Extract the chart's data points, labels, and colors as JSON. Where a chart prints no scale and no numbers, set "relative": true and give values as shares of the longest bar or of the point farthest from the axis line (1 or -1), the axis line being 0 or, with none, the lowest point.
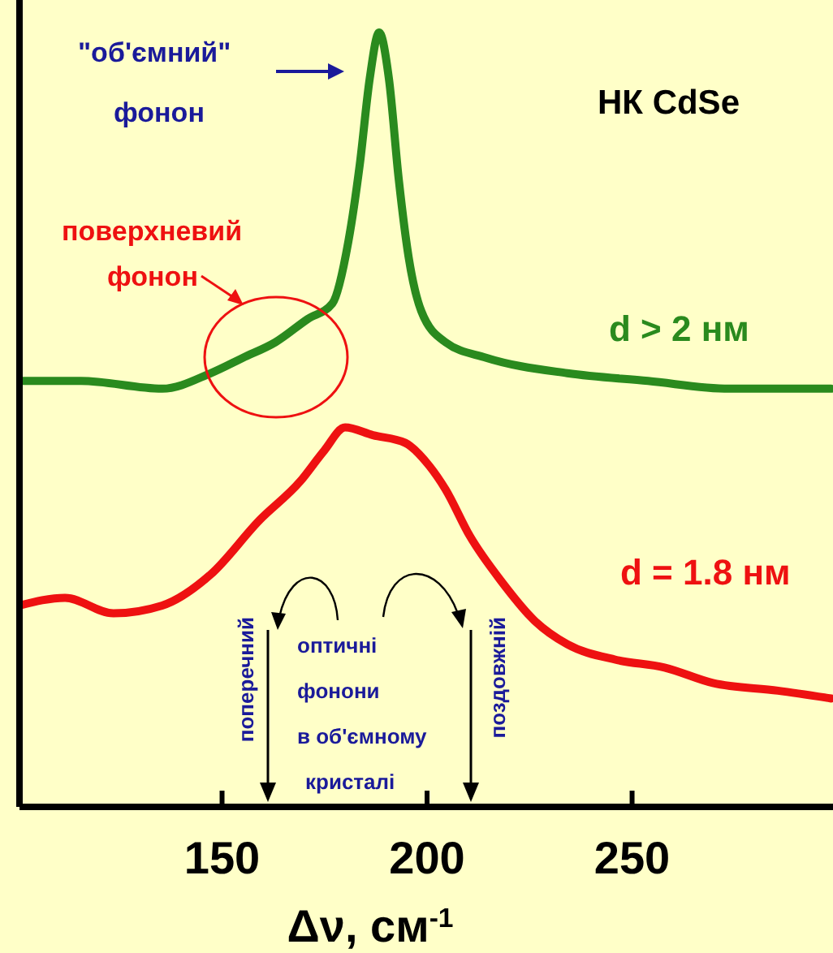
{
  "chart_data": {
    "type": "line",
    "relative": true,
    "xlabel": "Δν, см$^{-1}$",
    "xlim": [
      100,
      299
    ],
    "xticks": [
      150,
      200,
      250
    ],
    "grid": false,
    "line_style": "solid",
    "series": [
      {
        "name": "d > 2 нм",
        "color": "#2a8a1e",
        "x": [
          100.6,
          115.6,
          135.4,
          147.2,
          155.1,
          163.0,
          170.9,
          176.9,
          180.8,
          183.6,
          186.0,
          188.3,
          190.7,
          193.1,
          195.5,
          198.6,
          204.5,
          214.4,
          234.2,
          253.9,
          273.7,
          298.6
        ],
        "values": [
          0.55,
          0.55,
          0.54,
          0.56,
          0.58,
          0.6,
          0.63,
          0.65,
          0.73,
          0.83,
          0.94,
          1,
          0.94,
          0.81,
          0.71,
          0.64,
          0.6,
          0.58,
          0.56,
          0.55,
          0.54,
          0.54
        ]
      },
      {
        "name": "d = 1.8 нм",
        "color": "#ee1111",
        "x": [
          100.6,
          111.7,
          123.5,
          135.4,
          147.2,
          159.1,
          169.0,
          174.9,
          180.0,
          186.8,
          194.7,
          200.6,
          204.5,
          210.4,
          218.3,
          226.3,
          234.2,
          246.0,
          257.9,
          269.7,
          285.6,
          298.6
        ],
        "values": [
          0.26,
          0.27,
          0.25,
          0.26,
          0.3,
          0.37,
          0.42,
          0.46,
          0.49,
          0.48,
          0.47,
          0.44,
          0.41,
          0.35,
          0.29,
          0.24,
          0.21,
          0.19,
          0.18,
          0.16,
          0.15,
          0.14
        ]
      }
    ],
    "annotations": [
      "\"об'ємний\"",
      "фонон",
      "НК CdSe",
      "поверхневий",
      "фонон",
      "оптичні",
      "фонони",
      "в об'ємному",
      "кристалі",
      "поперечний",
      "поздовжній"
    ]
  }
}
